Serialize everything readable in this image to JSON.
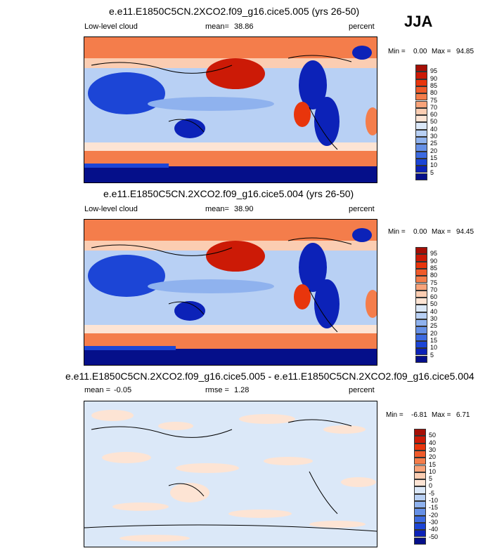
{
  "season": "JJA",
  "panels": [
    {
      "title": "e.e11.E1850C5CN.2XCO2.f09_g16.cice5.005 (yrs 26-50)",
      "left_label": "Low-level cloud",
      "mean_label": "mean=",
      "mean_value": "38.86",
      "units": "percent",
      "min_label": "Min =",
      "min_value": "0.00",
      "max_label": "Max =",
      "max_value": "94.85"
    },
    {
      "title": "e.e11.E1850C5CN.2XCO2.f09_g16.cice5.004 (yrs 26-50)",
      "left_label": "Low-level cloud",
      "mean_label": "mean=",
      "mean_value": "38.90",
      "units": "percent",
      "min_label": "Min =",
      "min_value": "0.00",
      "max_label": "Max =",
      "max_value": "94.45"
    },
    {
      "title": "e.e11.E1850C5CN.2XCO2.f09_g16.cice5.005 - e.e11.E1850C5CN.2XCO2.f09_g16.cice5.004",
      "left_label": "mean =",
      "left_value": "-0.05",
      "mean_label": "rmse =",
      "mean_value": "1.28",
      "units": "percent",
      "min_label": "Min =",
      "min_value": "-6.81",
      "max_label": "Max =",
      "max_value": "6.71"
    }
  ],
  "colorbars": {
    "abs": {
      "ticks": [
        "95",
        "90",
        "85",
        "80",
        "75",
        "70",
        "60",
        "50",
        "40",
        "30",
        "25",
        "20",
        "15",
        "10",
        "5"
      ],
      "colors": [
        "#a50f06",
        "#cc1a06",
        "#e8350c",
        "#ef5a2a",
        "#f47d4b",
        "#f8a37a",
        "#fbcdb2",
        "#fde4d4",
        "#dbe8f8",
        "#b8d0f4",
        "#8fb2ee",
        "#6690e6",
        "#3d6ae0",
        "#1c45d6",
        "#0c22b8",
        "#050f8a"
      ]
    },
    "diff": {
      "ticks": [
        "50",
        "40",
        "30",
        "20",
        "15",
        "10",
        "5",
        "0",
        "-5",
        "-10",
        "-15",
        "-20",
        "-30",
        "-40",
        "-50"
      ],
      "colors": [
        "#a50f06",
        "#cc1a06",
        "#e8350c",
        "#ef5a2a",
        "#f47d4b",
        "#f8a37a",
        "#fbcdb2",
        "#fde4d4",
        "#dbe8f8",
        "#b8d0f4",
        "#8fb2ee",
        "#6690e6",
        "#3d6ae0",
        "#1c45d6",
        "#0c22b8",
        "#050f8a"
      ]
    }
  },
  "chart_data": [
    {
      "type": "heatmap",
      "title": "e.e11.E1850C5CN.2XCO2.f09_g16.cice5.005 (yrs 26-50)",
      "variable": "Low-level cloud",
      "units": "percent",
      "mean": 38.86,
      "min": 0.0,
      "max": 94.85,
      "levels": [
        5,
        10,
        15,
        20,
        25,
        30,
        40,
        50,
        60,
        70,
        75,
        80,
        85,
        90,
        95
      ]
    },
    {
      "type": "heatmap",
      "title": "e.e11.E1850C5CN.2XCO2.f09_g16.cice5.004 (yrs 26-50)",
      "variable": "Low-level cloud",
      "units": "percent",
      "mean": 38.9,
      "min": 0.0,
      "max": 94.45,
      "levels": [
        5,
        10,
        15,
        20,
        25,
        30,
        40,
        50,
        60,
        70,
        75,
        80,
        85,
        90,
        95
      ]
    },
    {
      "type": "heatmap",
      "title": "e.e11.E1850C5CN.2XCO2.f09_g16.cice5.005 - e.e11.E1850C5CN.2XCO2.f09_g16.cice5.004",
      "units": "percent",
      "mean": -0.05,
      "rmse": 1.28,
      "min": -6.81,
      "max": 6.71,
      "levels": [
        -50,
        -40,
        -30,
        -20,
        -15,
        -10,
        -5,
        0,
        5,
        10,
        15,
        20,
        30,
        40,
        50
      ]
    }
  ]
}
